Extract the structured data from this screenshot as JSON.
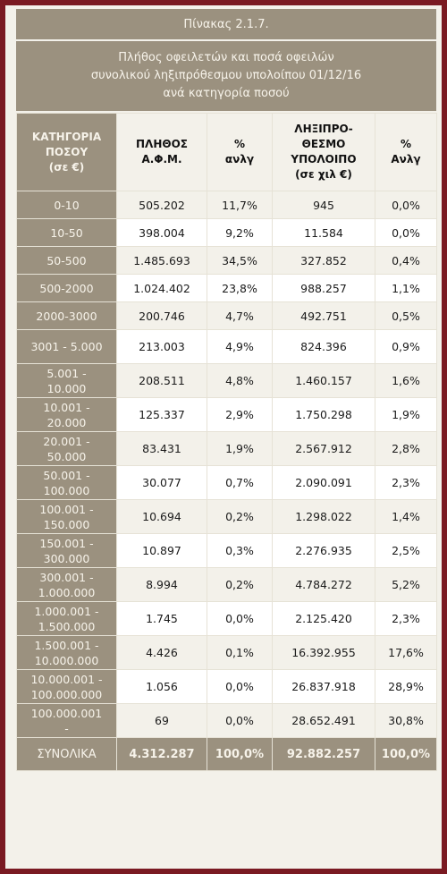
{
  "title": "Πίνακας 2.1.7.",
  "subtitle": {
    "line1": "Πλήθος οφειλετών και ποσά οφειλών",
    "line2": "συνολικού ληξιπρόθεσμου υπολοίπου 01/12/16",
    "line3": "ανά κατηγορία ποσού"
  },
  "headers": {
    "category": "ΚΑΤΗΓΟΡΙΑ\nΠΟΣΟΥ\n(σε €)",
    "count": "ΠΛΗΘΟΣ\nΑ.Φ.Μ.",
    "count_pct": "%\nανλγ",
    "amount": "ΛΗΞΙΠΡΟ-\nΘΕΣΜΟ\nΥΠΟΛΟΙΠΟ\n(σε χιλ €)",
    "amount_pct": "%\nΑνλγ"
  },
  "rows": [
    {
      "category": "0-10",
      "count": "505.202",
      "count_pct": "11,7%",
      "amount": "945",
      "amount_pct": "0,0%"
    },
    {
      "category": "10-50",
      "count": "398.004",
      "count_pct": "9,2%",
      "amount": "11.584",
      "amount_pct": "0,0%"
    },
    {
      "category": "50-500",
      "count": "1.485.693",
      "count_pct": "34,5%",
      "amount": "327.852",
      "amount_pct": "0,4%"
    },
    {
      "category": "500-2000",
      "count": "1.024.402",
      "count_pct": "23,8%",
      "amount": "988.257",
      "amount_pct": "1,1%"
    },
    {
      "category": "2000-3000",
      "count": "200.746",
      "count_pct": "4,7%",
      "amount": "492.751",
      "amount_pct": "0,5%"
    },
    {
      "category": "3001 - 5.000",
      "count": "213.003",
      "count_pct": "4,9%",
      "amount": "824.396",
      "amount_pct": "0,9%"
    },
    {
      "category": "5.001 -\n10.000",
      "count": "208.511",
      "count_pct": "4,8%",
      "amount": "1.460.157",
      "amount_pct": "1,6%"
    },
    {
      "category": "10.001 -\n20.000",
      "count": "125.337",
      "count_pct": "2,9%",
      "amount": "1.750.298",
      "amount_pct": "1,9%"
    },
    {
      "category": "20.001 -\n50.000",
      "count": "83.431",
      "count_pct": "1,9%",
      "amount": "2.567.912",
      "amount_pct": "2,8%"
    },
    {
      "category": "50.001 -\n100.000",
      "count": "30.077",
      "count_pct": "0,7%",
      "amount": "2.090.091",
      "amount_pct": "2,3%"
    },
    {
      "category": "100.001 -\n150.000",
      "count": "10.694",
      "count_pct": "0,2%",
      "amount": "1.298.022",
      "amount_pct": "1,4%"
    },
    {
      "category": "150.001 -\n300.000",
      "count": "10.897",
      "count_pct": "0,3%",
      "amount": "2.276.935",
      "amount_pct": "2,5%"
    },
    {
      "category": "300.001 -\n1.000.000",
      "count": "8.994",
      "count_pct": "0,2%",
      "amount": "4.784.272",
      "amount_pct": "5,2%"
    },
    {
      "category": "1.000.001 -\n1.500.000",
      "count": "1.745",
      "count_pct": "0,0%",
      "amount": "2.125.420",
      "amount_pct": "2,3%"
    },
    {
      "category": "1.500.001 -\n10.000.000",
      "count": "4.426",
      "count_pct": "0,1%",
      "amount": "16.392.955",
      "amount_pct": "17,6%"
    },
    {
      "category": "10.000.001 -\n100.000.000",
      "count": "1.056",
      "count_pct": "0,0%",
      "amount": "26.837.918",
      "amount_pct": "28,9%"
    },
    {
      "category": "100.000.001\n-",
      "count": "69",
      "count_pct": "0,0%",
      "amount": "28.652.491",
      "amount_pct": "30,8%"
    }
  ],
  "total": {
    "category": "ΣΥΝΟΛΙΚΑ",
    "count": "4.312.287",
    "count_pct": "100,0%",
    "amount": "92.882.257",
    "amount_pct": "100,0%"
  }
}
